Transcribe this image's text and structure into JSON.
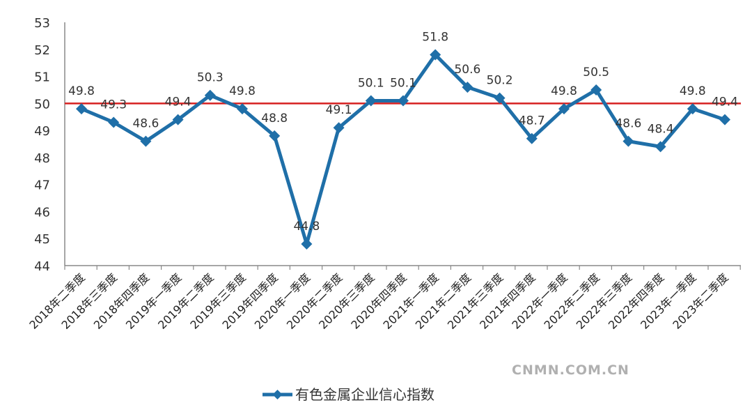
{
  "chart_data": {
    "type": "line",
    "title": "",
    "xlabel": "",
    "ylabel": "",
    "ylim": [
      44,
      53
    ],
    "yticks": [
      44,
      45,
      46,
      47,
      48,
      49,
      50,
      51,
      52,
      53
    ],
    "grid": false,
    "legend_position": "bottom",
    "reference_line": {
      "value": 50,
      "color": "#d62020"
    },
    "categories": [
      "2018年二季度",
      "2018年三季度",
      "2018年四季度",
      "2019年一季度",
      "2019年二季度",
      "2019年三季度",
      "2019年四季度",
      "2020年一季度",
      "2020年二季度",
      "2020年三季度",
      "2020年四季度",
      "2021年一季度",
      "2021年二季度",
      "2021年三季度",
      "2021年四季度",
      "2022年一季度",
      "2022年二季度",
      "2022年三季度",
      "2022年四季度",
      "2023年一季度",
      "2023年二季度"
    ],
    "series": [
      {
        "name": "有色金属企业信心指数",
        "color": "#1f6fa8",
        "marker": "diamond",
        "values": [
          49.8,
          49.3,
          48.6,
          49.4,
          50.3,
          49.8,
          48.8,
          44.8,
          49.1,
          50.1,
          50.1,
          51.8,
          50.6,
          50.2,
          48.7,
          49.8,
          50.5,
          48.6,
          48.4,
          49.8,
          49.4
        ]
      }
    ]
  },
  "watermark": "CNMN.COM.CN"
}
